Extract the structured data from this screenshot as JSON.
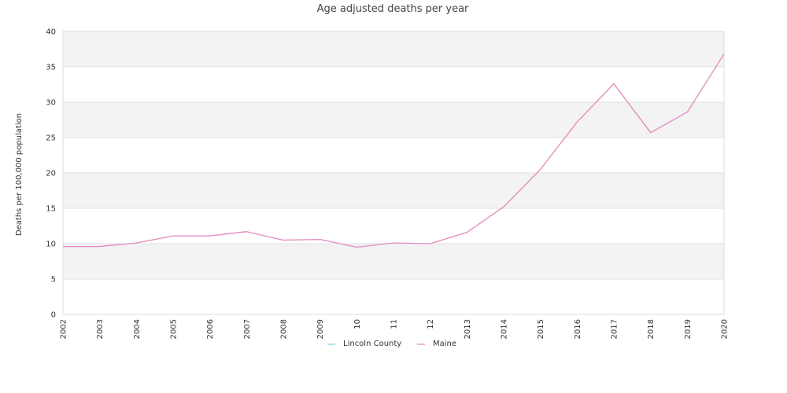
{
  "chart_data": {
    "type": "line",
    "title": "Age adjusted deaths per year",
    "xlabel": "",
    "ylabel": "Deaths per 100,000 population",
    "ylim": [
      0,
      40
    ],
    "yticks": [
      "0",
      "5",
      "10",
      "15",
      "20",
      "25",
      "30",
      "35",
      "40"
    ],
    "x": [
      "2002",
      "2003",
      "2004",
      "2005",
      "2006",
      "2007",
      "2008",
      "2009",
      "10",
      "11",
      "12",
      "2013",
      "2014",
      "2015",
      "2016",
      "2017",
      "2018",
      "2019",
      "2020"
    ],
    "series": [
      {
        "name": "Lincoln County",
        "color": "#8ecfe0",
        "values": [
          9.6,
          9.6,
          10.1,
          11.1,
          11.1,
          11.7,
          10.5,
          10.6,
          9.5,
          10.1,
          10.0,
          11.6,
          15.2,
          20.5,
          27.2,
          32.6,
          25.7,
          28.6,
          36.8
        ]
      },
      {
        "name": "Maine",
        "color": "#f08cc0",
        "values": [
          9.6,
          9.6,
          10.1,
          11.1,
          11.1,
          11.7,
          10.5,
          10.6,
          9.5,
          10.1,
          10.0,
          11.6,
          15.2,
          20.5,
          27.2,
          32.6,
          25.7,
          28.6,
          36.8
        ]
      }
    ],
    "grid": true,
    "band_color": "#f3f3f3",
    "legend_position": "bottom"
  }
}
